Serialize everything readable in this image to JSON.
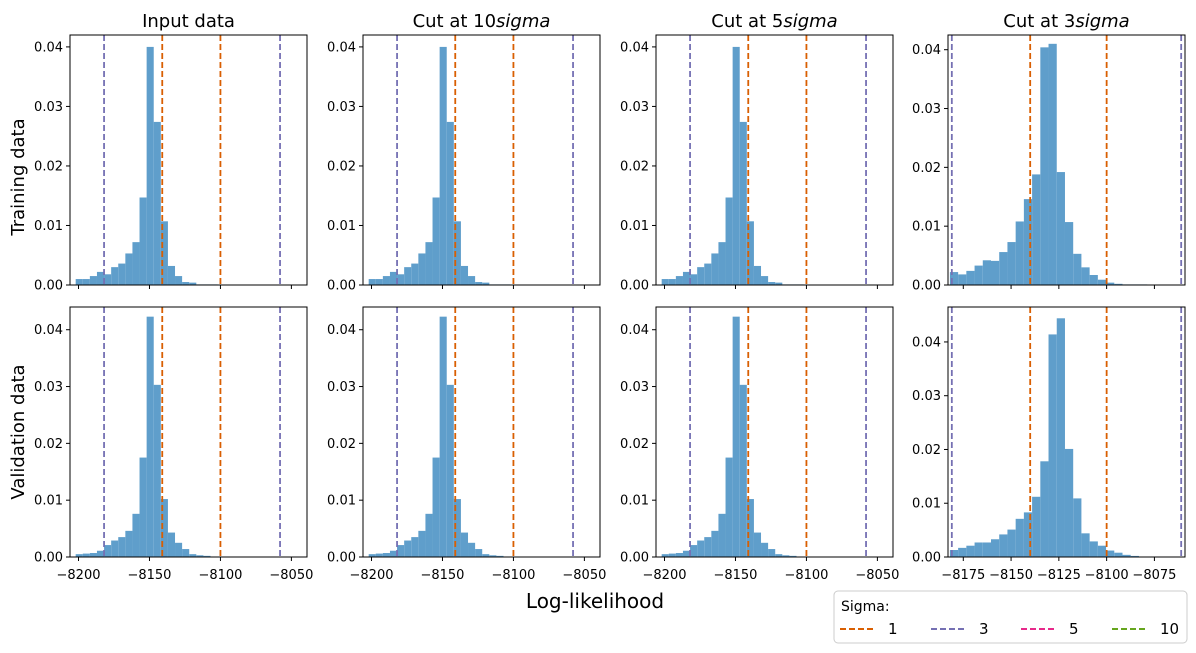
{
  "figure": {
    "xlabel": "Log-likelihood",
    "row_labels": [
      "Training data",
      "Validation data"
    ],
    "legend": {
      "title": "Sigma:",
      "entries": [
        {
          "label": "1",
          "color": "#d95f02"
        },
        {
          "label": "3",
          "color": "#7570b3"
        },
        {
          "label": "5",
          "color": "#e7298a"
        },
        {
          "label": "10",
          "color": "#66a61e"
        }
      ]
    },
    "bar_color": "#5f9ecb"
  },
  "chart_data": [
    {
      "type": "bar",
      "panel": "Training data / Input data",
      "title": {
        "prefix": "Input data",
        "emph": ""
      },
      "xlim": [
        -8206,
        -8039
      ],
      "ylim": [
        0,
        0.042
      ],
      "xticks": [
        -8200,
        -8150,
        -8100,
        -8050
      ],
      "yticks": [
        0,
        0.01,
        0.02,
        0.03,
        0.04
      ],
      "ytick_labels": [
        "0.00",
        "0.01",
        "0.02",
        "0.03",
        "0.04"
      ],
      "show_xtick_labels": false,
      "bin_start": -8202,
      "bin_width": 5,
      "values": [
        0.001,
        0.001,
        0.0015,
        0.0022,
        0.0018,
        0.003,
        0.0036,
        0.0053,
        0.0072,
        0.0147,
        0.04,
        0.0274,
        0.0107,
        0.0032,
        0.0015,
        0.0005,
        0.0004,
        0.0001,
        0.0001,
        0.0001
      ],
      "vlines": [
        {
          "sigma": "1",
          "x": [
            -8141,
            -8100
          ]
        },
        {
          "sigma": "3",
          "x": [
            -8182,
            -8058
          ]
        }
      ]
    },
    {
      "type": "bar",
      "panel": "Training data / Cut at 10sigma",
      "title": {
        "prefix": "Cut at 10",
        "emph": "sigma"
      },
      "xlim": [
        -8206,
        -8039
      ],
      "ylim": [
        0,
        0.042
      ],
      "xticks": [
        -8200,
        -8150,
        -8100,
        -8050
      ],
      "yticks": [
        0,
        0.01,
        0.02,
        0.03,
        0.04
      ],
      "ytick_labels": [
        "0.00",
        "0.01",
        "0.02",
        "0.03",
        "0.04"
      ],
      "show_xtick_labels": false,
      "bin_start": -8202,
      "bin_width": 5,
      "values": [
        0.001,
        0.001,
        0.0015,
        0.0022,
        0.0018,
        0.003,
        0.0036,
        0.0053,
        0.0072,
        0.0147,
        0.04,
        0.0274,
        0.0107,
        0.0032,
        0.0015,
        0.0005,
        0.0004,
        0.0001,
        0.0001,
        0.0001
      ],
      "vlines": [
        {
          "sigma": "1",
          "x": [
            -8141,
            -8100
          ]
        },
        {
          "sigma": "3",
          "x": [
            -8182,
            -8058
          ]
        }
      ]
    },
    {
      "type": "bar",
      "panel": "Training data / Cut at 5sigma",
      "title": {
        "prefix": "Cut at 5",
        "emph": "sigma"
      },
      "xlim": [
        -8206,
        -8039
      ],
      "ylim": [
        0,
        0.042
      ],
      "xticks": [
        -8200,
        -8150,
        -8100,
        -8050
      ],
      "yticks": [
        0,
        0.01,
        0.02,
        0.03,
        0.04
      ],
      "ytick_labels": [
        "0.00",
        "0.01",
        "0.02",
        "0.03",
        "0.04"
      ],
      "show_xtick_labels": false,
      "bin_start": -8202,
      "bin_width": 5,
      "values": [
        0.001,
        0.001,
        0.0015,
        0.0022,
        0.0018,
        0.003,
        0.0036,
        0.0053,
        0.0072,
        0.0147,
        0.04,
        0.0274,
        0.0107,
        0.0032,
        0.0015,
        0.0005,
        0.0004,
        0.0001,
        0.0001,
        0.0001
      ],
      "vlines": [
        {
          "sigma": "1",
          "x": [
            -8141,
            -8100
          ]
        },
        {
          "sigma": "3",
          "x": [
            -8182,
            -8058
          ]
        }
      ]
    },
    {
      "type": "bar",
      "panel": "Training data / Cut at 3sigma",
      "title": {
        "prefix": "Cut at 3",
        "emph": "sigma"
      },
      "xlim": [
        -8183,
        -8059
      ],
      "ylim": [
        0,
        0.0425
      ],
      "xticks": [
        -8175,
        -8150,
        -8125,
        -8100,
        -8075
      ],
      "yticks": [
        0,
        0.01,
        0.02,
        0.03,
        0.04
      ],
      "ytick_labels": [
        "0.00",
        "0.01",
        "0.02",
        "0.03",
        "0.04"
      ],
      "show_xtick_labels": false,
      "bin_start": -8182,
      "bin_width": 4.3,
      "values": [
        0.0022,
        0.0018,
        0.0024,
        0.0033,
        0.0042,
        0.0041,
        0.0056,
        0.0073,
        0.0108,
        0.0146,
        0.0188,
        0.0404,
        0.041,
        0.0192,
        0.0107,
        0.0053,
        0.003,
        0.0017,
        0.0009,
        0.0004,
        0.0002,
        0.0001,
        0.0001,
        0.0001
      ],
      "vlines": [
        {
          "sigma": "1",
          "x": [
            -8140,
            -8100
          ]
        },
        {
          "sigma": "3",
          "x": [
            -8181,
            -8061
          ]
        }
      ]
    },
    {
      "type": "bar",
      "panel": "Validation data / Input data",
      "title": {
        "prefix": "",
        "emph": ""
      },
      "xlim": [
        -8206,
        -8039
      ],
      "ylim": [
        0,
        0.044
      ],
      "xticks": [
        -8200,
        -8150,
        -8100,
        -8050
      ],
      "yticks": [
        0,
        0.01,
        0.02,
        0.03,
        0.04
      ],
      "ytick_labels": [
        "0.00",
        "0.01",
        "0.02",
        "0.03",
        "0.04"
      ],
      "xtick_labels": [
        "−8200",
        "−8150",
        "−8100",
        "−8050"
      ],
      "show_xtick_labels": true,
      "bin_start": -8202,
      "bin_width": 5,
      "values": [
        0.0005,
        0.0006,
        0.0007,
        0.0011,
        0.0021,
        0.0029,
        0.0035,
        0.0046,
        0.0076,
        0.0175,
        0.0423,
        0.0303,
        0.0102,
        0.0043,
        0.0025,
        0.0014,
        0.0005,
        0.0003,
        0.0002
      ],
      "vlines": [
        {
          "sigma": "1",
          "x": [
            -8141,
            -8100
          ]
        },
        {
          "sigma": "3",
          "x": [
            -8182,
            -8058
          ]
        }
      ]
    },
    {
      "type": "bar",
      "panel": "Validation data / Cut at 10sigma",
      "title": {
        "prefix": "",
        "emph": ""
      },
      "xlim": [
        -8206,
        -8039
      ],
      "ylim": [
        0,
        0.044
      ],
      "xticks": [
        -8200,
        -8150,
        -8100,
        -8050
      ],
      "yticks": [
        0,
        0.01,
        0.02,
        0.03,
        0.04
      ],
      "ytick_labels": [
        "0.00",
        "0.01",
        "0.02",
        "0.03",
        "0.04"
      ],
      "xtick_labels": [
        "−8200",
        "−8150",
        "−8100",
        "−8050"
      ],
      "show_xtick_labels": true,
      "bin_start": -8202,
      "bin_width": 5,
      "values": [
        0.0005,
        0.0006,
        0.0007,
        0.0011,
        0.0021,
        0.0029,
        0.0035,
        0.0046,
        0.0076,
        0.0175,
        0.0423,
        0.0303,
        0.0102,
        0.0043,
        0.0025,
        0.0014,
        0.0005,
        0.0003,
        0.0002
      ],
      "vlines": [
        {
          "sigma": "1",
          "x": [
            -8141,
            -8100
          ]
        },
        {
          "sigma": "3",
          "x": [
            -8182,
            -8058
          ]
        }
      ]
    },
    {
      "type": "bar",
      "panel": "Validation data / Cut at 5sigma",
      "title": {
        "prefix": "",
        "emph": ""
      },
      "xlim": [
        -8206,
        -8039
      ],
      "ylim": [
        0,
        0.044
      ],
      "xticks": [
        -8200,
        -8150,
        -8100,
        -8050
      ],
      "yticks": [
        0,
        0.01,
        0.02,
        0.03,
        0.04
      ],
      "ytick_labels": [
        "0.00",
        "0.01",
        "0.02",
        "0.03",
        "0.04"
      ],
      "xtick_labels": [
        "−8200",
        "−8150",
        "−8100",
        "−8050"
      ],
      "show_xtick_labels": true,
      "bin_start": -8202,
      "bin_width": 5,
      "values": [
        0.0005,
        0.0006,
        0.0007,
        0.0011,
        0.0021,
        0.0029,
        0.0035,
        0.0046,
        0.0076,
        0.0175,
        0.0423,
        0.0303,
        0.0102,
        0.0043,
        0.0025,
        0.0014,
        0.0005,
        0.0003,
        0.0002
      ],
      "vlines": [
        {
          "sigma": "1",
          "x": [
            -8141,
            -8100
          ]
        },
        {
          "sigma": "3",
          "x": [
            -8182,
            -8058
          ]
        }
      ]
    },
    {
      "type": "bar",
      "panel": "Validation data / Cut at 3sigma",
      "title": {
        "prefix": "",
        "emph": ""
      },
      "xlim": [
        -8183,
        -8059
      ],
      "ylim": [
        0,
        0.0465
      ],
      "xticks": [
        -8175,
        -8150,
        -8125,
        -8100,
        -8075
      ],
      "yticks": [
        0,
        0.01,
        0.02,
        0.03,
        0.04
      ],
      "ytick_labels": [
        "0.00",
        "0.01",
        "0.02",
        "0.03",
        "0.04"
      ],
      "xtick_labels": [
        "−8175",
        "−8150",
        "−8125",
        "−8100",
        "−8075"
      ],
      "show_xtick_labels": true,
      "bin_start": -8182,
      "bin_width": 4.3,
      "values": [
        0.0013,
        0.0017,
        0.0021,
        0.0027,
        0.0027,
        0.0033,
        0.0042,
        0.0051,
        0.0071,
        0.0083,
        0.0112,
        0.0178,
        0.0414,
        0.0444,
        0.0201,
        0.0109,
        0.0044,
        0.0029,
        0.0021,
        0.0012,
        0.0008,
        0.0004,
        0.0002
      ],
      "vlines": [
        {
          "sigma": "1",
          "x": [
            -8140,
            -8100
          ]
        },
        {
          "sigma": "3",
          "x": [
            -8181,
            -8061
          ]
        }
      ]
    }
  ]
}
